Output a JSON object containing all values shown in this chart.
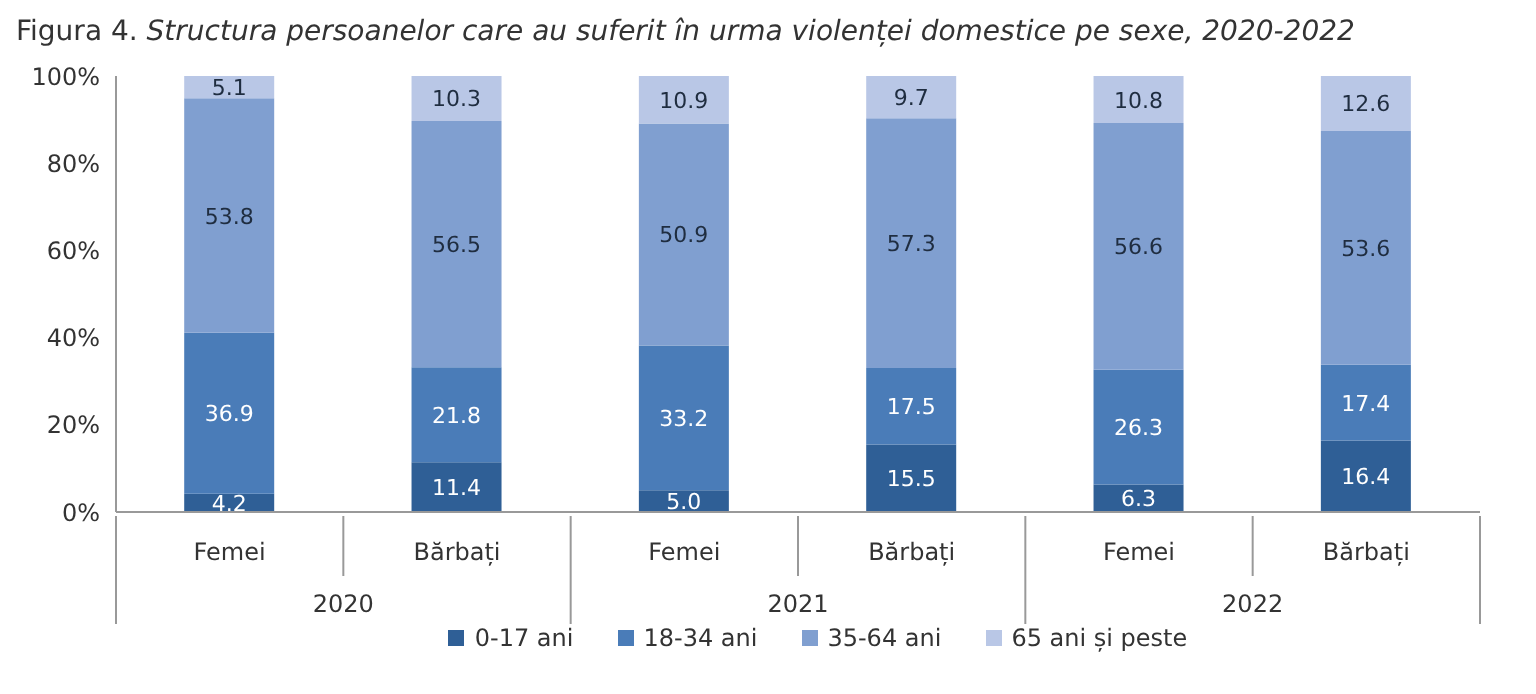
{
  "chart_data": {
    "type": "bar",
    "stacked": true,
    "title": "Figura 4. Structura persoanelor care au suferit în urma violenței domestice pe sexe, 2020-2022",
    "categories": [
      "Femei",
      "Bărbați",
      "Femei",
      "Bărbați",
      "Femei",
      "Bărbați"
    ],
    "annotations": [
      "2020",
      "2021",
      "2022"
    ],
    "series": [
      {
        "name": "0-17 ani",
        "color": "#2f5f96",
        "values": [
          4.2,
          11.4,
          5.0,
          15.5,
          6.3,
          16.4
        ],
        "value_labels": [
          "4.2",
          "11.4",
          "5.0",
          "15.5",
          "6.3",
          "16.4"
        ]
      },
      {
        "name": "18-34 ani",
        "color": "#4a7cb8",
        "values": [
          36.9,
          21.8,
          33.2,
          17.5,
          26.3,
          17.4
        ],
        "value_labels": [
          "36.9",
          "21.8",
          "33.2",
          "17.5",
          "26.3",
          "17.4"
        ]
      },
      {
        "name": "35-64 ani",
        "color": "#809fd0",
        "values": [
          53.8,
          56.5,
          50.9,
          57.3,
          56.6,
          53.6
        ],
        "value_labels": [
          "53.8",
          "56.5",
          "50.9",
          "57.3",
          "56.6",
          "53.6"
        ]
      },
      {
        "name": "65 ani și peste",
        "color": "#b9c7e6",
        "values": [
          5.1,
          10.3,
          10.9,
          9.7,
          10.8,
          12.6
        ],
        "value_labels": [
          "5.1",
          "10.3",
          "10.9",
          "9.7",
          "10.8",
          "12.6"
        ]
      }
    ],
    "ylim": [
      0,
      100
    ],
    "yticks": [
      {
        "value": 0,
        "label": "0%"
      },
      {
        "value": 20,
        "label": "20%"
      },
      {
        "value": 40,
        "label": "40%"
      },
      {
        "value": 60,
        "label": "60%"
      },
      {
        "value": 80,
        "label": "80%"
      },
      {
        "value": 100,
        "label": "100%"
      }
    ],
    "grid": false,
    "legend": "bottom"
  }
}
